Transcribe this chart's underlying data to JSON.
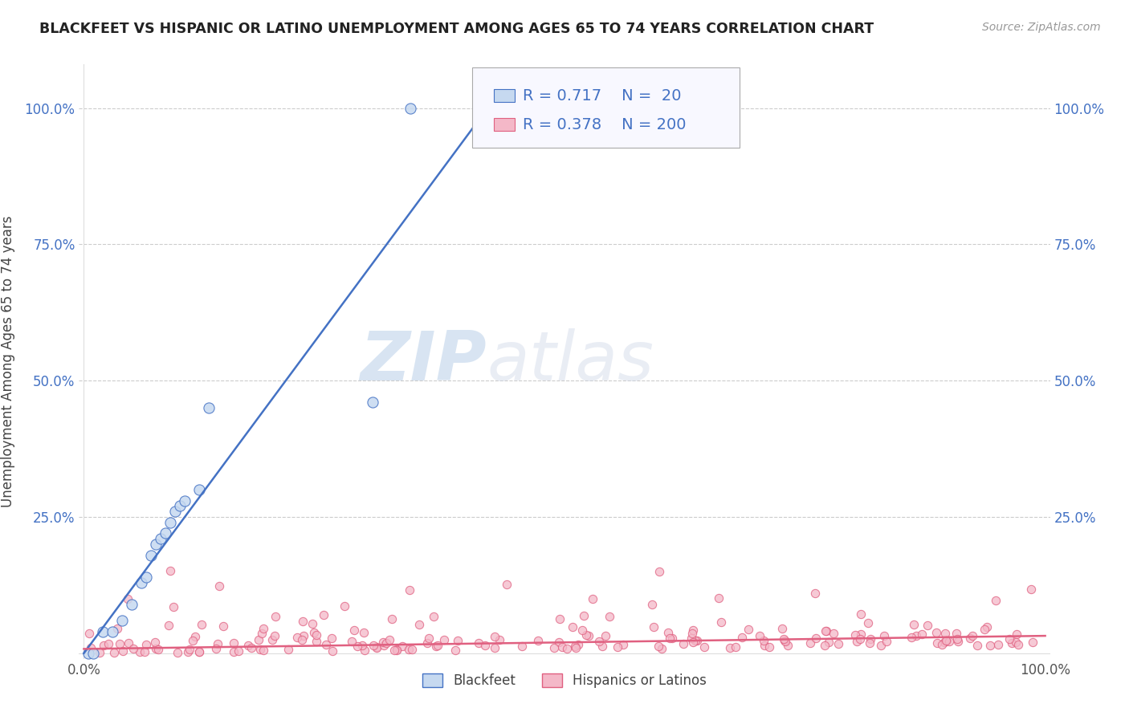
{
  "title": "BLACKFEET VS HISPANIC OR LATINO UNEMPLOYMENT AMONG AGES 65 TO 74 YEARS CORRELATION CHART",
  "source": "Source: ZipAtlas.com",
  "ylabel": "Unemployment Among Ages 65 to 74 years",
  "xlim": [
    -0.005,
    1.005
  ],
  "ylim": [
    -0.01,
    1.08
  ],
  "xticks": [
    0.0,
    0.25,
    0.5,
    0.75,
    1.0
  ],
  "xtick_labels": [
    "0.0%",
    "",
    "",
    "",
    "100.0%"
  ],
  "yticks": [
    0.0,
    0.25,
    0.5,
    0.75,
    1.0
  ],
  "ytick_labels": [
    "",
    "25.0%",
    "50.0%",
    "75.0%",
    "100.0%"
  ],
  "blue_R": 0.717,
  "blue_N": 20,
  "pink_R": 0.378,
  "pink_N": 200,
  "blue_fill": "#c6d9f0",
  "blue_edge": "#4472C4",
  "pink_fill": "#f4b8c8",
  "pink_edge": "#E06080",
  "blue_line": "#4472C4",
  "pink_line": "#E06080",
  "legend_label_blue": "Blackfeet",
  "legend_label_pink": "Hispanics or Latinos",
  "watermark_zip": "ZIP",
  "watermark_atlas": "atlas",
  "background_color": "#ffffff",
  "blue_x": [
    0.005,
    0.01,
    0.02,
    0.03,
    0.04,
    0.05,
    0.06,
    0.065,
    0.07,
    0.075,
    0.08,
    0.085,
    0.09,
    0.095,
    0.1,
    0.105,
    0.12,
    0.13,
    0.3,
    0.34
  ],
  "blue_y": [
    0.0,
    0.0,
    0.04,
    0.04,
    0.06,
    0.09,
    0.13,
    0.14,
    0.18,
    0.2,
    0.21,
    0.22,
    0.24,
    0.26,
    0.27,
    0.28,
    0.3,
    0.45,
    0.46,
    1.0
  ],
  "blue_line_x": [
    0.0,
    1.0
  ],
  "blue_line_y": [
    0.0,
    2.4
  ],
  "pink_line_x": [
    0.0,
    1.0
  ],
  "pink_line_y": [
    0.005,
    0.04
  ]
}
